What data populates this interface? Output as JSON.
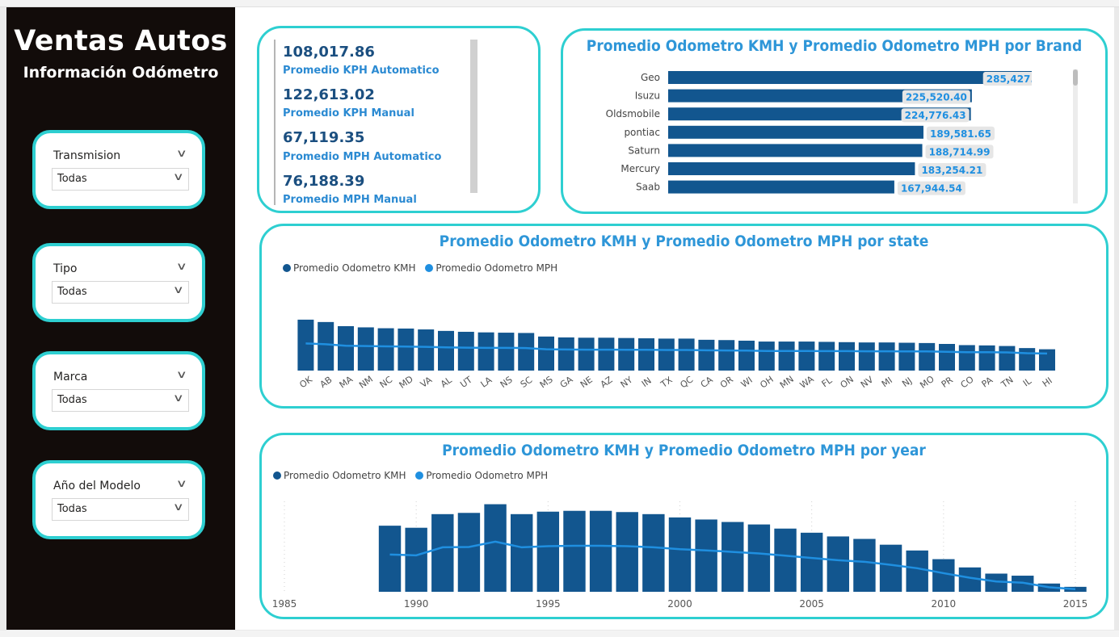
{
  "sidebar": {
    "title": "Ventas Autos",
    "subtitle": "Información Odómetro",
    "slicers": [
      {
        "label": "Transmision",
        "value": "Todas"
      },
      {
        "label": "Tipo",
        "value": "Todas"
      },
      {
        "label": "Marca",
        "value": "Todas"
      },
      {
        "label": "Año del Modelo",
        "value": "Todas"
      }
    ]
  },
  "kpis": [
    {
      "value": "108,017.86",
      "label": "Promedio KPH Automatico"
    },
    {
      "value": "122,613.02",
      "label": "Promedio KPH Manual"
    },
    {
      "value": "67,119.35",
      "label": "Promedio MPH Automatico"
    },
    {
      "value": "76,188.39",
      "label": "Promedio MPH Manual"
    }
  ],
  "colors": {
    "accent": "#2ecfd1",
    "bar_dark": "#12568f",
    "line_light": "#1f8fe0",
    "title": "#2e96d8",
    "sidebar_bg": "#120c0a"
  },
  "chart_data": [
    {
      "type": "bar",
      "title": "Promedio Odometro KMH y Promedio Odometro MPH por Brand",
      "orientation": "horizontal",
      "categories": [
        "Geo",
        "Isuzu",
        "Oldsmobile",
        "pontiac",
        "Saturn",
        "Mercury",
        "Saab"
      ],
      "values": [
        285427.29,
        225520.4,
        224776.43,
        189581.65,
        188714.99,
        183254.21,
        167944.54
      ],
      "data_labels": [
        "285,427.29",
        "225,520.40",
        "224,776.43",
        "189,581.65",
        "188,714.99",
        "183,254.21",
        "167,944.54"
      ],
      "xlim": [
        0,
        300000
      ]
    },
    {
      "type": "bar",
      "title": "Promedio Odometro KMH y Promedio Odometro MPH por state",
      "categories": [
        "OK",
        "AB",
        "MA",
        "NM",
        "NC",
        "MD",
        "VA",
        "AL",
        "UT",
        "LA",
        "NS",
        "SC",
        "MS",
        "GA",
        "NE",
        "AZ",
        "NY",
        "IN",
        "TX",
        "QC",
        "CA",
        "OR",
        "WI",
        "OH",
        "MN",
        "WA",
        "FL",
        "ON",
        "NV",
        "MI",
        "NJ",
        "MO",
        "PR",
        "CO",
        "PA",
        "TN",
        "IL",
        "HI"
      ],
      "series": [
        {
          "name": "Promedio Odometro KMH",
          "values": [
            172000,
            164000,
            150000,
            146000,
            143000,
            142000,
            139000,
            134000,
            131000,
            129000,
            128000,
            127000,
            115000,
            112000,
            111000,
            111000,
            110000,
            109000,
            108000,
            108000,
            104000,
            103000,
            101000,
            98000,
            98000,
            98000,
            97000,
            96000,
            95000,
            95000,
            94000,
            93000,
            90000,
            86000,
            85000,
            83000,
            76000,
            72000
          ]
        },
        {
          "name": "Promedio Odometro MPH",
          "values": [
            107000,
            102000,
            93000,
            91000,
            89000,
            88000,
            86000,
            83000,
            81000,
            80000,
            80000,
            79000,
            71000,
            70000,
            69000,
            69000,
            68000,
            68000,
            67000,
            67000,
            65000,
            64000,
            63000,
            61000,
            61000,
            61000,
            60000,
            60000,
            59000,
            59000,
            58000,
            58000,
            56000,
            53000,
            53000,
            52000,
            47000,
            45000
          ]
        }
      ],
      "ylim": [
        0,
        180000
      ],
      "legend": "top-left"
    },
    {
      "type": "bar",
      "title": "Promedio Odometro KMH y Promedio Odometro MPH por year",
      "x": [
        1989,
        1990,
        1991,
        1992,
        1993,
        1994,
        1995,
        1996,
        1997,
        1998,
        1999,
        2000,
        2001,
        2002,
        2003,
        2004,
        2005,
        2006,
        2007,
        2008,
        2009,
        2010,
        2011,
        2012,
        2013,
        2014,
        2015
      ],
      "x_ticks": [
        1985,
        1990,
        1995,
        2000,
        2005,
        2010,
        2015
      ],
      "xlim": [
        1985,
        2015
      ],
      "series": [
        {
          "name": "Promedio Odometro KMH",
          "values": [
            160000,
            155000,
            188000,
            191000,
            212000,
            188000,
            194000,
            196000,
            196000,
            193000,
            188000,
            180000,
            175000,
            169000,
            163000,
            153000,
            143000,
            134000,
            128000,
            114000,
            100000,
            79000,
            59000,
            44000,
            39000,
            20000,
            12000
          ]
        },
        {
          "name": "Promedio Odometro MPH",
          "values": [
            98000,
            96000,
            117000,
            118000,
            132000,
            117000,
            120000,
            121000,
            121000,
            120000,
            117000,
            112000,
            109000,
            105000,
            101000,
            95000,
            89000,
            83000,
            79000,
            71000,
            62000,
            49000,
            37000,
            27000,
            24000,
            12000,
            7000
          ]
        }
      ],
      "ylim": [
        0,
        215000
      ],
      "legend": "top-left"
    }
  ]
}
